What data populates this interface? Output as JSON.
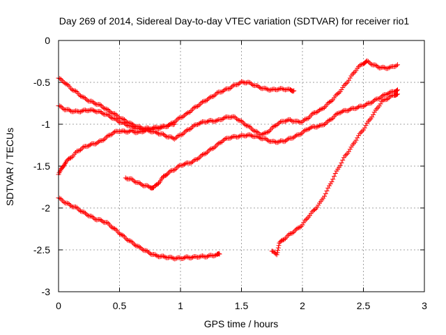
{
  "chart_data": {
    "type": "scatter",
    "title": "Day 269 of 2014, Sidereal Day-to-day VTEC variation (SDTVAR) for receiver rio1",
    "xlabel": "GPS time / hours",
    "ylabel": "SDTVAR / TECUs",
    "xlim": [
      0,
      3
    ],
    "ylim": [
      -3,
      0
    ],
    "x_ticks": [
      0,
      0.5,
      1,
      1.5,
      2,
      2.5,
      3
    ],
    "x_tick_labels": [
      "0",
      "0.5",
      "1",
      "1.5",
      "2",
      "2.5",
      "3"
    ],
    "y_ticks": [
      0,
      -0.5,
      -1,
      -1.5,
      -2,
      -2.5,
      -3
    ],
    "y_tick_labels": [
      "0",
      "-0.5",
      "-1",
      "-1.5",
      "-2",
      "-2.5",
      "-3"
    ],
    "grid": true,
    "marker": "+",
    "color": "#ff0000",
    "series": [
      {
        "points": [
          [
            0.0,
            -0.45
          ],
          [
            0.05,
            -0.5
          ],
          [
            0.1,
            -0.57
          ],
          [
            0.15,
            -0.62
          ],
          [
            0.2,
            -0.68
          ],
          [
            0.25,
            -0.72
          ],
          [
            0.3,
            -0.75
          ],
          [
            0.35,
            -0.78
          ],
          [
            0.4,
            -0.83
          ],
          [
            0.45,
            -0.87
          ],
          [
            0.5,
            -0.92
          ],
          [
            0.55,
            -0.96
          ],
          [
            0.6,
            -1.0
          ],
          [
            0.65,
            -1.03
          ],
          [
            0.7,
            -1.05
          ],
          [
            0.75,
            -1.05
          ],
          [
            0.8,
            -1.04
          ],
          [
            0.85,
            -1.03
          ],
          [
            0.9,
            -1.02
          ],
          [
            0.95,
            -0.97
          ],
          [
            1.0,
            -0.92
          ],
          [
            1.05,
            -0.88
          ],
          [
            1.1,
            -0.82
          ],
          [
            1.15,
            -0.77
          ],
          [
            1.2,
            -0.72
          ],
          [
            1.25,
            -0.68
          ],
          [
            1.3,
            -0.63
          ],
          [
            1.35,
            -0.6
          ],
          [
            1.4,
            -0.57
          ],
          [
            1.45,
            -0.53
          ],
          [
            1.5,
            -0.5
          ],
          [
            1.55,
            -0.5
          ],
          [
            1.6,
            -0.53
          ],
          [
            1.65,
            -0.56
          ],
          [
            1.7,
            -0.58
          ],
          [
            1.75,
            -0.59
          ],
          [
            1.8,
            -0.58
          ],
          [
            1.85,
            -0.58
          ],
          [
            1.9,
            -0.59
          ],
          [
            1.93,
            -0.6
          ]
        ]
      },
      {
        "points": [
          [
            0.0,
            -0.78
          ],
          [
            0.05,
            -0.82
          ],
          [
            0.1,
            -0.84
          ],
          [
            0.15,
            -0.85
          ],
          [
            0.2,
            -0.84
          ],
          [
            0.25,
            -0.83
          ],
          [
            0.3,
            -0.84
          ],
          [
            0.35,
            -0.86
          ],
          [
            0.4,
            -0.89
          ],
          [
            0.45,
            -0.93
          ],
          [
            0.5,
            -0.97
          ],
          [
            0.55,
            -1.0
          ],
          [
            0.6,
            -1.03
          ],
          [
            0.65,
            -1.05
          ],
          [
            0.7,
            -1.07
          ],
          [
            0.75,
            -1.08
          ],
          [
            0.8,
            -1.1
          ],
          [
            0.85,
            -1.12
          ],
          [
            0.9,
            -1.15
          ],
          [
            0.95,
            -1.17
          ],
          [
            1.0,
            -1.13
          ],
          [
            1.05,
            -1.08
          ],
          [
            1.1,
            -1.03
          ],
          [
            1.15,
            -0.99
          ],
          [
            1.2,
            -0.97
          ],
          [
            1.25,
            -0.96
          ],
          [
            1.3,
            -0.96
          ],
          [
            1.35,
            -0.93
          ],
          [
            1.4,
            -0.91
          ],
          [
            1.45,
            -0.92
          ],
          [
            1.5,
            -0.97
          ],
          [
            1.55,
            -1.02
          ],
          [
            1.6,
            -1.07
          ],
          [
            1.65,
            -1.12
          ],
          [
            1.7,
            -1.11
          ],
          [
            1.75,
            -1.05
          ],
          [
            1.8,
            -0.99
          ],
          [
            1.85,
            -0.96
          ],
          [
            1.9,
            -0.95
          ],
          [
            1.95,
            -0.97
          ],
          [
            2.0,
            -0.97
          ],
          [
            2.05,
            -0.92
          ],
          [
            2.1,
            -0.86
          ],
          [
            2.15,
            -0.83
          ],
          [
            2.2,
            -0.77
          ],
          [
            2.25,
            -0.7
          ],
          [
            2.3,
            -0.62
          ],
          [
            2.35,
            -0.53
          ],
          [
            2.4,
            -0.43
          ],
          [
            2.45,
            -0.33
          ],
          [
            2.5,
            -0.27
          ],
          [
            2.53,
            -0.25
          ],
          [
            2.58,
            -0.29
          ],
          [
            2.63,
            -0.32
          ],
          [
            2.68,
            -0.33
          ],
          [
            2.73,
            -0.32
          ],
          [
            2.78,
            -0.29
          ]
        ]
      },
      {
        "points": [
          [
            0.0,
            -1.6
          ],
          [
            0.03,
            -1.52
          ],
          [
            0.06,
            -1.45
          ],
          [
            0.1,
            -1.4
          ],
          [
            0.15,
            -1.33
          ],
          [
            0.2,
            -1.28
          ],
          [
            0.25,
            -1.25
          ],
          [
            0.3,
            -1.23
          ],
          [
            0.35,
            -1.2
          ],
          [
            0.4,
            -1.15
          ],
          [
            0.45,
            -1.1
          ],
          [
            0.5,
            -1.08
          ],
          [
            0.55,
            -1.09
          ],
          [
            0.6,
            -1.08
          ],
          [
            0.65,
            -1.1
          ],
          [
            0.7,
            -1.08
          ],
          [
            0.75,
            -1.06
          ],
          [
            0.8,
            -1.05
          ],
          [
            0.85,
            -1.04
          ],
          [
            0.9,
            -1.01
          ],
          [
            0.95,
            -1.0
          ]
        ]
      },
      {
        "points": [
          [
            0.55,
            -1.64
          ],
          [
            0.6,
            -1.66
          ],
          [
            0.65,
            -1.7
          ],
          [
            0.7,
            -1.73
          ],
          [
            0.75,
            -1.75
          ],
          [
            0.78,
            -1.76
          ],
          [
            0.82,
            -1.7
          ],
          [
            0.86,
            -1.63
          ],
          [
            0.9,
            -1.58
          ],
          [
            0.95,
            -1.54
          ],
          [
            1.0,
            -1.49
          ],
          [
            1.05,
            -1.47
          ],
          [
            1.1,
            -1.45
          ],
          [
            1.15,
            -1.4
          ],
          [
            1.2,
            -1.35
          ],
          [
            1.25,
            -1.3
          ],
          [
            1.3,
            -1.25
          ],
          [
            1.35,
            -1.19
          ],
          [
            1.4,
            -1.16
          ],
          [
            1.45,
            -1.15
          ],
          [
            1.5,
            -1.14
          ],
          [
            1.55,
            -1.13
          ],
          [
            1.6,
            -1.14
          ],
          [
            1.65,
            -1.16
          ],
          [
            1.7,
            -1.18
          ],
          [
            1.75,
            -1.21
          ],
          [
            1.8,
            -1.21
          ],
          [
            1.85,
            -1.2
          ],
          [
            1.9,
            -1.17
          ],
          [
            1.95,
            -1.14
          ],
          [
            2.0,
            -1.1
          ],
          [
            2.05,
            -1.05
          ],
          [
            2.1,
            -1.03
          ],
          [
            2.15,
            -1.02
          ],
          [
            2.2,
            -0.98
          ],
          [
            2.25,
            -0.92
          ],
          [
            2.3,
            -0.86
          ],
          [
            2.35,
            -0.84
          ],
          [
            2.4,
            -0.82
          ],
          [
            2.45,
            -0.8
          ],
          [
            2.5,
            -0.78
          ],
          [
            2.55,
            -0.75
          ],
          [
            2.6,
            -0.71
          ],
          [
            2.65,
            -0.67
          ],
          [
            2.7,
            -0.63
          ],
          [
            2.75,
            -0.61
          ],
          [
            2.78,
            -0.59
          ]
        ]
      },
      {
        "points": [
          [
            0.0,
            -1.88
          ],
          [
            0.05,
            -1.93
          ],
          [
            0.1,
            -1.97
          ],
          [
            0.15,
            -2.0
          ],
          [
            0.2,
            -2.05
          ],
          [
            0.25,
            -2.09
          ],
          [
            0.3,
            -2.13
          ],
          [
            0.35,
            -2.15
          ],
          [
            0.4,
            -2.18
          ],
          [
            0.45,
            -2.24
          ],
          [
            0.5,
            -2.3
          ],
          [
            0.55,
            -2.36
          ],
          [
            0.6,
            -2.41
          ],
          [
            0.65,
            -2.46
          ],
          [
            0.7,
            -2.5
          ],
          [
            0.75,
            -2.54
          ],
          [
            0.8,
            -2.57
          ],
          [
            0.85,
            -2.58
          ],
          [
            0.9,
            -2.59
          ],
          [
            0.95,
            -2.6
          ],
          [
            1.0,
            -2.6
          ],
          [
            1.05,
            -2.59
          ],
          [
            1.1,
            -2.59
          ],
          [
            1.15,
            -2.58
          ],
          [
            1.2,
            -2.58
          ],
          [
            1.25,
            -2.57
          ],
          [
            1.3,
            -2.56
          ],
          [
            1.32,
            -2.55
          ]
        ]
      },
      {
        "points": [
          [
            1.75,
            -2.52
          ],
          [
            1.79,
            -2.55
          ],
          [
            1.81,
            -2.42
          ],
          [
            1.85,
            -2.37
          ],
          [
            1.9,
            -2.31
          ],
          [
            1.95,
            -2.26
          ],
          [
            2.0,
            -2.2
          ],
          [
            2.05,
            -2.1
          ],
          [
            2.1,
            -2.02
          ],
          [
            2.15,
            -1.93
          ],
          [
            2.2,
            -1.8
          ],
          [
            2.25,
            -1.65
          ],
          [
            2.3,
            -1.51
          ],
          [
            2.35,
            -1.38
          ],
          [
            2.4,
            -1.28
          ],
          [
            2.45,
            -1.16
          ],
          [
            2.5,
            -1.06
          ],
          [
            2.55,
            -0.95
          ],
          [
            2.6,
            -0.84
          ],
          [
            2.65,
            -0.73
          ],
          [
            2.7,
            -0.69
          ],
          [
            2.75,
            -0.65
          ],
          [
            2.78,
            -0.64
          ]
        ]
      }
    ]
  }
}
